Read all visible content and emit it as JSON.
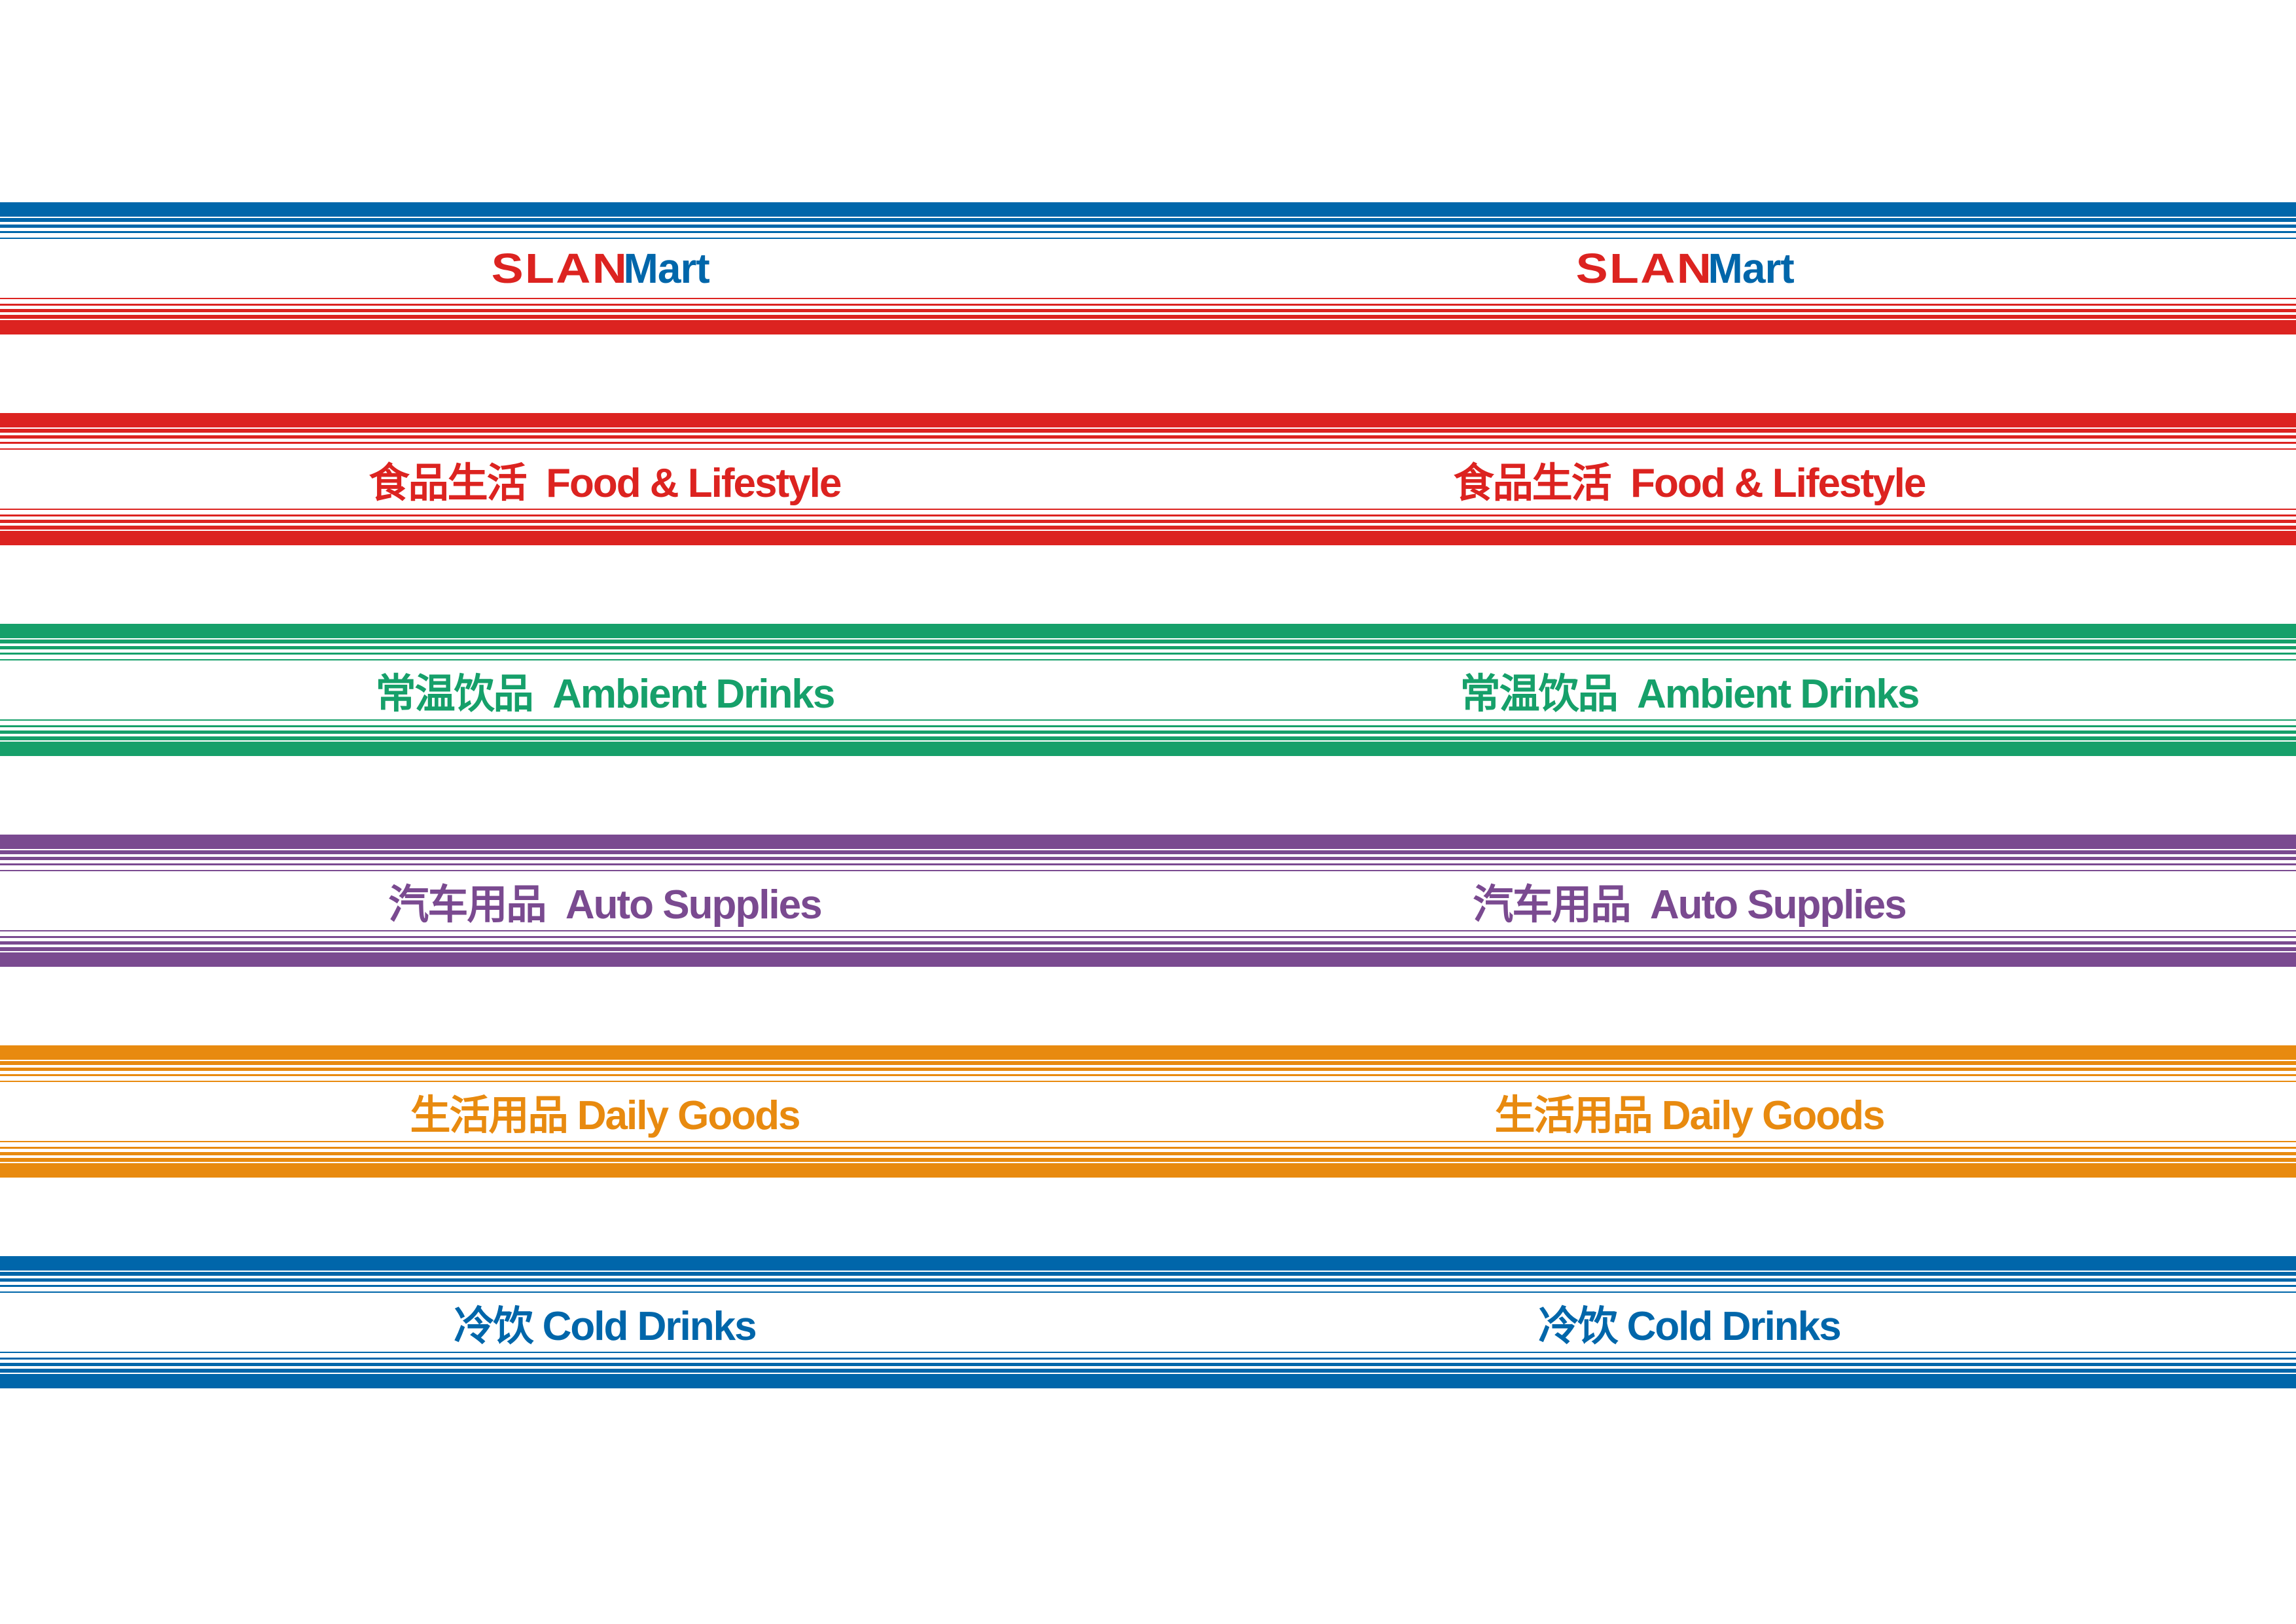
{
  "logo": {
    "part1": "SLAN",
    "part2": "Mart"
  },
  "bands": [
    {
      "id": "logo",
      "top_color": "#0066aa",
      "bottom_color": "#dc2320",
      "text_color": "#dc2320",
      "label": "SLANMart"
    },
    {
      "id": "food",
      "top_color": "#dc2320",
      "bottom_color": "#dc2320",
      "text_color": "#dc2320",
      "label": "食品生活  Food & Lifestyle"
    },
    {
      "id": "ambient",
      "top_color": "#16a06a",
      "bottom_color": "#16a06a",
      "text_color": "#16a06a",
      "label": "常温饮品  Ambient Drinks"
    },
    {
      "id": "auto",
      "top_color": "#7a4a90",
      "bottom_color": "#7a4a90",
      "text_color": "#7a4a90",
      "label": "汽车用品  Auto Supplies"
    },
    {
      "id": "daily",
      "top_color": "#e88a0f",
      "bottom_color": "#e88a0f",
      "text_color": "#e88a0f",
      "label": "生活用品 Daily Goods"
    },
    {
      "id": "cold",
      "top_color": "#0066aa",
      "bottom_color": "#0066aa",
      "text_color": "#0066aa",
      "label": "冷饮 Cold Drinks"
    }
  ]
}
